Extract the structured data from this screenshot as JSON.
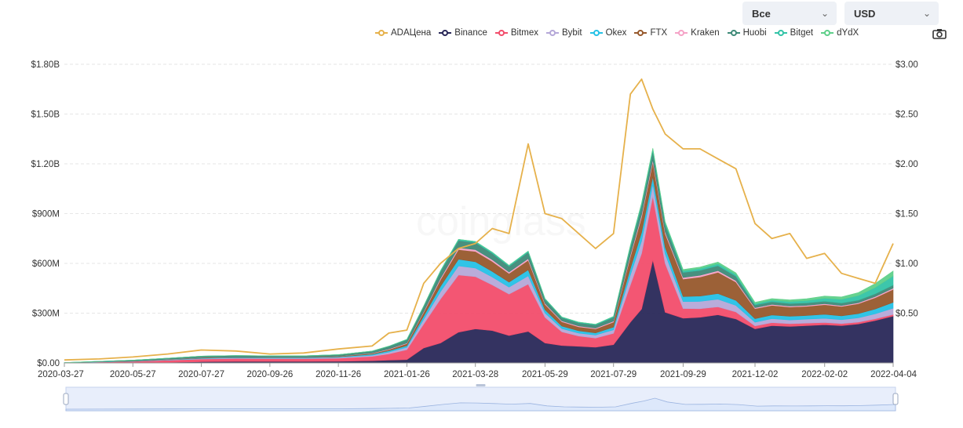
{
  "controls": {
    "range_label": "Все",
    "currency_label": "USD",
    "chevron": "⌄"
  },
  "icons": {
    "camera": "camera-icon",
    "chevron": "chevron-down-icon"
  },
  "watermark": "coinglass",
  "colors": {
    "price": "#e6b14b",
    "Binance": "#292859",
    "Bitmex": "#f24d6b",
    "Bybit": "#b5a8d8",
    "Okex": "#25c1e6",
    "FTX": "#97592c",
    "Kraken": "#f5a3c7",
    "Huobi": "#3e8a78",
    "Bitget": "#33c3a7",
    "dYdX": "#5fd08a",
    "navigator_fill": "#dde8fb",
    "navigator_line": "#9bb4e0"
  },
  "chart_data": {
    "type": "area",
    "stacked": true,
    "legend": [
      "ADAЦена",
      "Binance",
      "Bitmex",
      "Bybit",
      "Okex",
      "FTX",
      "Kraken",
      "Huobi",
      "Bitget",
      "dYdX"
    ],
    "legend_position": "top-right",
    "x_tick_labels": [
      "2020-03-27",
      "2020-05-27",
      "2020-07-27",
      "2020-09-26",
      "2020-11-26",
      "2021-01-26",
      "2021-03-28",
      "2021-05-29",
      "2021-07-29",
      "2021-09-29",
      "2021-12-02",
      "2022-02-02",
      "2022-04-04"
    ],
    "y_left_ticks": [
      "$0.00",
      "$300M",
      "$600M",
      "$900M",
      "$1.20B",
      "$1.50B",
      "$1.80B"
    ],
    "y_left_range": [
      0,
      1800
    ],
    "y_left_unit": "M USD",
    "y_right_ticks": [
      "$0.50",
      "$1.00",
      "$1.50",
      "$2.00",
      "$2.50",
      "$3.00"
    ],
    "y_right_range": [
      0,
      3
    ],
    "x_range": [
      "2020-03-27",
      "2022-04-04"
    ],
    "grid": true,
    "x": [
      "2020-03-27",
      "2020-04-27",
      "2020-05-27",
      "2020-06-27",
      "2020-07-27",
      "2020-08-27",
      "2020-09-26",
      "2020-10-26",
      "2020-11-26",
      "2020-12-26",
      "2021-01-10",
      "2021-01-26",
      "2021-02-10",
      "2021-02-25",
      "2021-03-13",
      "2021-03-28",
      "2021-04-12",
      "2021-04-27",
      "2021-05-14",
      "2021-05-29",
      "2021-06-13",
      "2021-06-28",
      "2021-07-13",
      "2021-07-29",
      "2021-08-13",
      "2021-08-23",
      "2021-09-02",
      "2021-09-13",
      "2021-09-29",
      "2021-10-14",
      "2021-10-30",
      "2021-11-15",
      "2021-12-02",
      "2021-12-17",
      "2022-01-02",
      "2022-01-17",
      "2022-02-02",
      "2022-02-17",
      "2022-03-04",
      "2022-03-19",
      "2022-04-04"
    ],
    "series": [
      {
        "name": "Binance",
        "axis": "left",
        "values": [
          0,
          1,
          2,
          4,
          7,
          9,
          9,
          9,
          10,
          13,
          17,
          20,
          90,
          120,
          185,
          205,
          195,
          165,
          190,
          120,
          105,
          100,
          95,
          110,
          245,
          325,
          620,
          305,
          270,
          275,
          290,
          265,
          205,
          225,
          220,
          225,
          230,
          225,
          235,
          255,
          282
        ]
      },
      {
        "name": "Bitmex",
        "axis": "left",
        "values": [
          1,
          4,
          7,
          12,
          16,
          17,
          16,
          16,
          18,
          26,
          38,
          60,
          145,
          265,
          345,
          315,
          275,
          250,
          285,
          155,
          82,
          62,
          55,
          68,
          225,
          335,
          385,
          295,
          58,
          52,
          48,
          42,
          18,
          18,
          16,
          15,
          14,
          12,
          11,
          11,
          10
        ]
      },
      {
        "name": "Bybit",
        "axis": "left",
        "values": [
          0,
          1,
          1,
          2,
          3,
          4,
          4,
          4,
          5,
          7,
          10,
          14,
          28,
          45,
          55,
          52,
          48,
          42,
          50,
          26,
          20,
          18,
          18,
          22,
          60,
          75,
          70,
          58,
          42,
          44,
          46,
          40,
          22,
          24,
          23,
          24,
          25,
          24,
          26,
          30,
          38
        ]
      },
      {
        "name": "Okex",
        "axis": "left",
        "values": [
          0,
          1,
          1,
          2,
          3,
          3,
          3,
          3,
          4,
          6,
          8,
          10,
          20,
          32,
          40,
          38,
          34,
          30,
          36,
          20,
          15,
          14,
          13,
          16,
          40,
          52,
          48,
          40,
          30,
          32,
          34,
          30,
          22,
          22,
          22,
          22,
          24,
          23,
          25,
          29,
          35
        ]
      },
      {
        "name": "FTX",
        "axis": "left",
        "values": [
          0,
          0,
          1,
          1,
          2,
          2,
          2,
          2,
          3,
          5,
          8,
          12,
          22,
          40,
          58,
          62,
          60,
          52,
          58,
          32,
          26,
          24,
          24,
          30,
          70,
          92,
          88,
          80,
          105,
          115,
          128,
          110,
          60,
          58,
          56,
          55,
          58,
          56,
          60,
          68,
          78
        ]
      },
      {
        "name": "Kraken",
        "axis": "left",
        "values": [
          0,
          0,
          0,
          1,
          1,
          1,
          1,
          1,
          1,
          2,
          3,
          4,
          6,
          9,
          11,
          11,
          10,
          9,
          10,
          6,
          5,
          5,
          5,
          6,
          12,
          15,
          14,
          12,
          10,
          10,
          10,
          9,
          6,
          6,
          6,
          6,
          6,
          6,
          6,
          7,
          8
        ]
      },
      {
        "name": "Huobi",
        "axis": "left",
        "values": [
          1,
          3,
          5,
          7,
          9,
          9,
          8,
          8,
          9,
          12,
          16,
          20,
          30,
          40,
          44,
          42,
          38,
          34,
          38,
          24,
          20,
          19,
          19,
          23,
          45,
          55,
          52,
          45,
          30,
          30,
          30,
          26,
          16,
          16,
          15,
          15,
          15,
          15,
          15,
          16,
          18
        ]
      },
      {
        "name": "Bitget",
        "axis": "left",
        "values": [
          0,
          0,
          0,
          0,
          0,
          0,
          0,
          0,
          0,
          1,
          1,
          2,
          3,
          5,
          7,
          7,
          7,
          6,
          7,
          5,
          4,
          4,
          4,
          5,
          10,
          12,
          12,
          11,
          10,
          11,
          12,
          11,
          8,
          10,
          12,
          14,
          18,
          22,
          28,
          38,
          55
        ]
      },
      {
        "name": "dYdX",
        "axis": "left",
        "values": [
          0,
          0,
          0,
          0,
          0,
          0,
          0,
          0,
          0,
          0,
          0,
          0,
          0,
          0,
          0,
          0,
          0,
          0,
          0,
          0,
          0,
          0,
          0,
          0,
          2,
          4,
          6,
          6,
          8,
          9,
          10,
          10,
          8,
          9,
          10,
          11,
          13,
          15,
          18,
          24,
          30
        ]
      },
      {
        "name": "ADAЦена",
        "axis": "right",
        "values": [
          0.03,
          0.04,
          0.06,
          0.09,
          0.13,
          0.12,
          0.09,
          0.1,
          0.14,
          0.17,
          0.3,
          0.33,
          0.8,
          1.0,
          1.15,
          1.2,
          1.35,
          1.3,
          2.2,
          1.5,
          1.45,
          1.3,
          1.15,
          1.3,
          2.7,
          2.85,
          2.55,
          2.3,
          2.15,
          2.15,
          2.05,
          1.95,
          1.4,
          1.25,
          1.3,
          1.05,
          1.1,
          0.9,
          0.85,
          0.8,
          1.2
        ]
      }
    ]
  }
}
